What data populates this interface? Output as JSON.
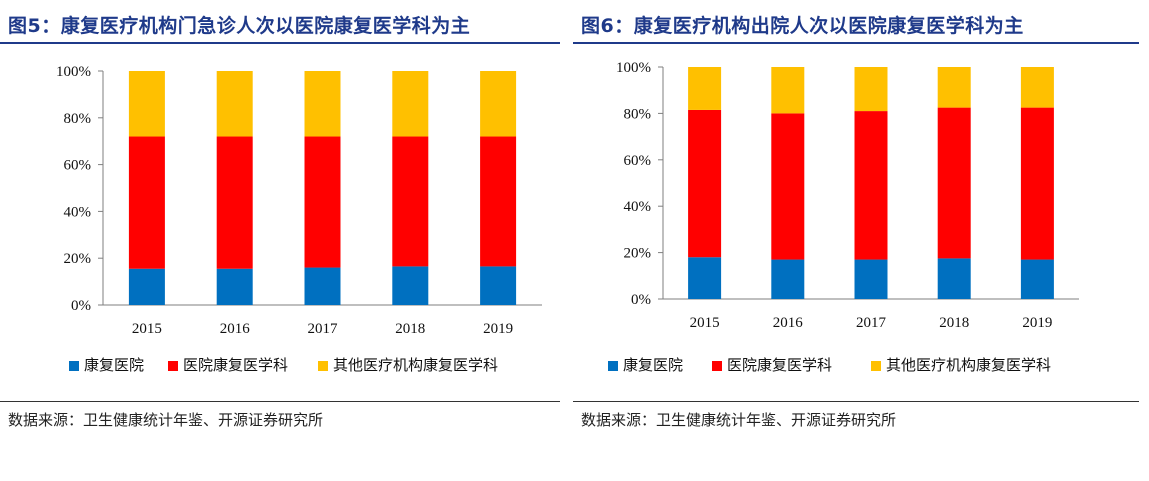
{
  "figure_left": {
    "title": "图5：康复医疗机构门急诊人次以医院康复医学科为主",
    "source": "数据来源：卫生健康统计年鉴、开源证券研究所"
  },
  "figure_right": {
    "title": "图6：康复医疗机构出院人次以医院康复医学科为主",
    "source": "数据来源：卫生健康统计年鉴、开源证券研究所"
  },
  "colors": {
    "title": "#1f3a8a",
    "series_blue": "#0070c0",
    "series_red": "#ff0000",
    "series_yellow": "#ffc000"
  },
  "chart_data": [
    {
      "type": "bar",
      "stacked": true,
      "title": "图5：康复医疗机构门急诊人次以医院康复医学科为主",
      "categories": [
        "2015",
        "2016",
        "2017",
        "2018",
        "2019"
      ],
      "series": [
        {
          "name": "康复医院",
          "color": "#0070c0",
          "values": [
            15.5,
            15.5,
            16,
            16.5,
            16.5
          ]
        },
        {
          "name": "医院康复医学科",
          "color": "#ff0000",
          "values": [
            56.5,
            56.5,
            56,
            55.5,
            55.5
          ]
        },
        {
          "name": "其他医疗机构康复医学科",
          "color": "#ffc000",
          "values": [
            28,
            28,
            28,
            28,
            28
          ]
        }
      ],
      "ylim": [
        0,
        100
      ],
      "yticks": [
        "0%",
        "20%",
        "40%",
        "60%",
        "80%",
        "100%"
      ],
      "legend_position": "bottom",
      "grid": false
    },
    {
      "type": "bar",
      "stacked": true,
      "title": "图6：康复医疗机构出院人次以医院康复医学科为主",
      "categories": [
        "2015",
        "2016",
        "2017",
        "2018",
        "2019"
      ],
      "series": [
        {
          "name": "康复医院",
          "color": "#0070c0",
          "values": [
            18,
            17,
            17,
            17.5,
            17
          ]
        },
        {
          "name": "医院康复医学科",
          "color": "#ff0000",
          "values": [
            63.5,
            63,
            64,
            65,
            65.5
          ]
        },
        {
          "name": "其他医疗机构康复医学科",
          "color": "#ffc000",
          "values": [
            18.5,
            20,
            19,
            17.5,
            17.5
          ]
        }
      ],
      "ylim": [
        0,
        100
      ],
      "yticks": [
        "0%",
        "20%",
        "40%",
        "60%",
        "80%",
        "100%"
      ],
      "legend_position": "bottom",
      "grid": false
    }
  ]
}
